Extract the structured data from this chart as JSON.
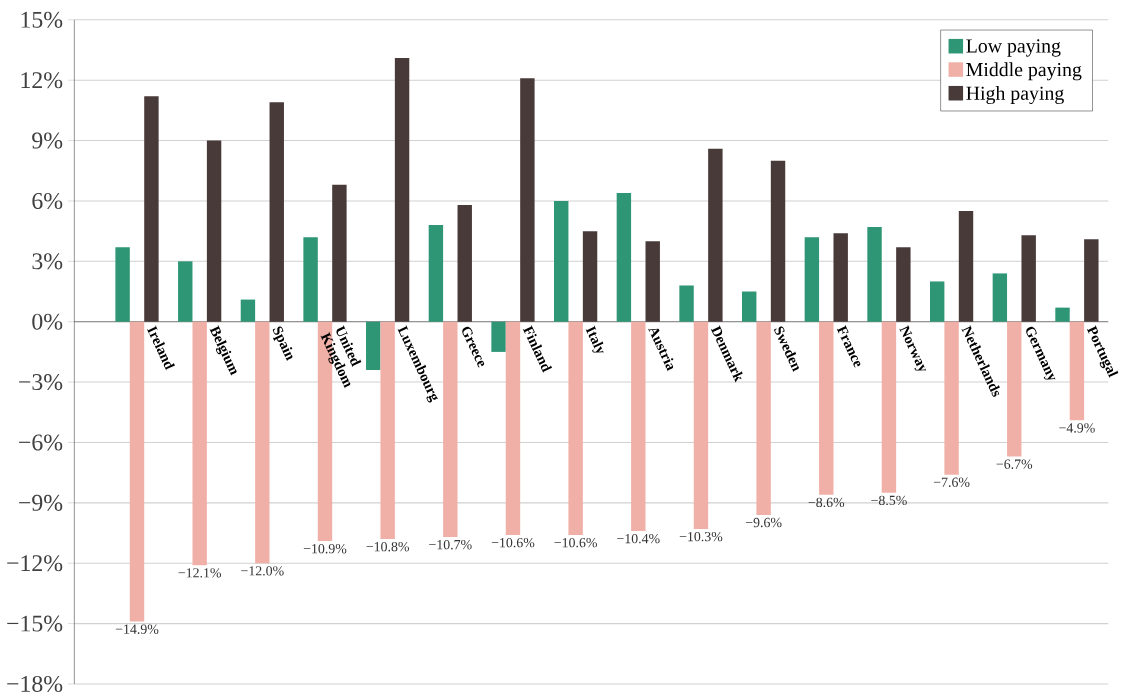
{
  "chart_data": {
    "type": "bar",
    "categories": [
      "Ireland",
      "Belgium",
      "Spain",
      "United Kingdom",
      "Luxembourg",
      "Greece",
      "Finland",
      "Italy",
      "Austria",
      "Denmark",
      "Sweden",
      "France",
      "Norway",
      "Netherlands",
      "Germany",
      "Portugal"
    ],
    "series": [
      {
        "name": "Low paying",
        "color": "#2e9575",
        "values": [
          3.7,
          3.0,
          1.1,
          4.2,
          -2.4,
          4.8,
          -1.5,
          6.0,
          6.4,
          1.8,
          1.5,
          4.2,
          4.7,
          2.0,
          2.4,
          0.7
        ]
      },
      {
        "name": "Middle paying",
        "color": "#f0b0a8",
        "values": [
          -14.9,
          -12.1,
          -12.0,
          -10.9,
          -10.8,
          -10.7,
          -10.6,
          -10.6,
          -10.4,
          -10.3,
          -9.6,
          -8.6,
          -8.5,
          -7.6,
          -6.7,
          -4.9
        ],
        "value_labels": [
          "−14.9%",
          "−12.1%",
          "−12.0%",
          "−10.9%",
          "−10.8%",
          "−10.7%",
          "−10.6%",
          "−10.6%",
          "−10.4%",
          "−10.3%",
          "−9.6%",
          "−8.6%",
          "−8.5%",
          "−7.6%",
          "−6.7%",
          "−4.9%"
        ]
      },
      {
        "name": "High paying",
        "color": "#473a38",
        "values": [
          11.2,
          9.0,
          10.9,
          6.8,
          13.1,
          5.8,
          12.1,
          4.5,
          4.0,
          8.6,
          8.0,
          4.4,
          3.7,
          5.5,
          4.3,
          4.1
        ]
      }
    ],
    "ylim": [
      -18,
      15
    ],
    "yticks": [
      {
        "value": -18,
        "label": "−18%"
      },
      {
        "value": -15,
        "label": "−15%"
      },
      {
        "value": -12,
        "label": "−12%"
      },
      {
        "value": -9,
        "label": "−9%"
      },
      {
        "value": -6,
        "label": "−6%"
      },
      {
        "value": -3,
        "label": "−3%"
      },
      {
        "value": 0,
        "label": "0%"
      },
      {
        "value": 3,
        "label": "3%"
      },
      {
        "value": 6,
        "label": "6%"
      },
      {
        "value": 9,
        "label": "9%"
      },
      {
        "value": 12,
        "label": "12%"
      },
      {
        "value": 15,
        "label": "15%"
      }
    ],
    "grid": "y",
    "legend": "top right"
  }
}
